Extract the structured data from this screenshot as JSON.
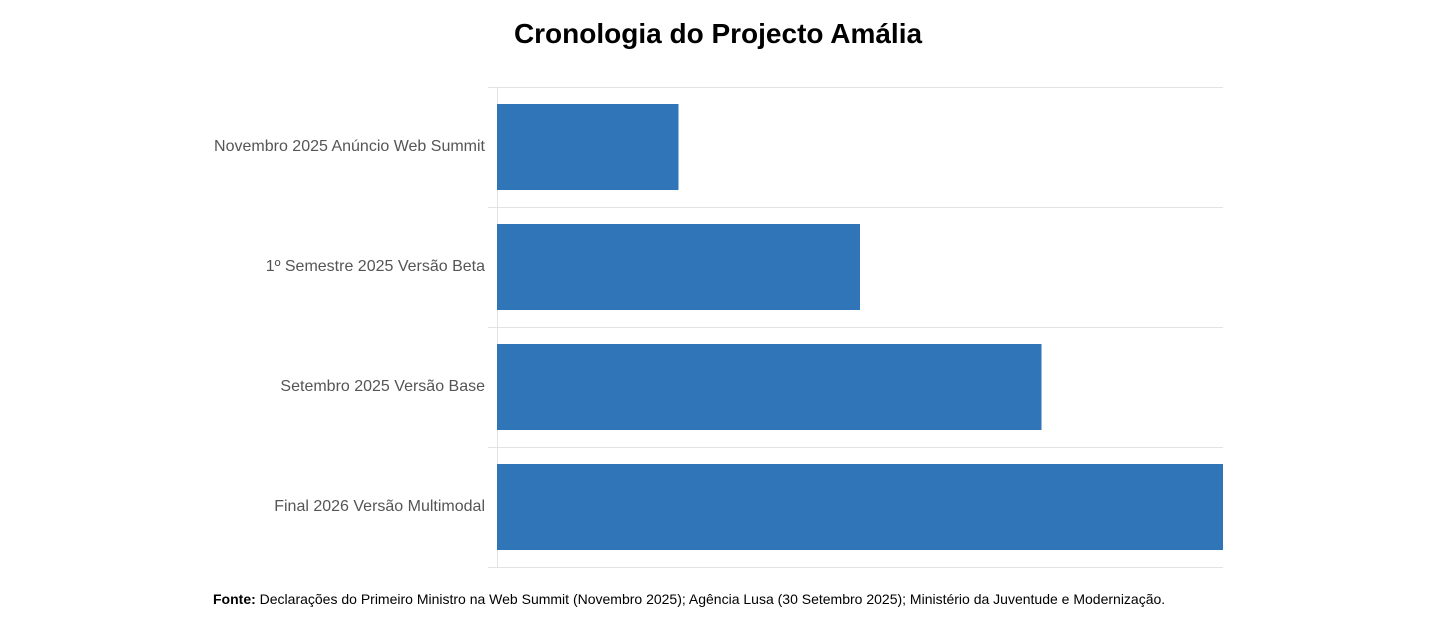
{
  "chart_data": {
    "type": "bar",
    "orientation": "horizontal",
    "title": "Cronologia do Projecto Amália",
    "categories": [
      "Novembro 2025 Anúncio Web Summit",
      "1º Semestre 2025 Versão Beta",
      "Setembro 2025 Versão Base",
      "Final 2026 Versão Multimodal"
    ],
    "values": [
      1,
      2,
      3,
      4
    ],
    "xlim": [
      0,
      4
    ],
    "xlabel": "",
    "ylabel": "",
    "x_tick_labels_shown": false,
    "grid": "horizontal separators",
    "legend": "none",
    "bar_color": "#2f75b8"
  },
  "source": {
    "label": "Fonte:",
    "text": "Declarações do Primeiro Ministro na Web Summit (Novembro 2025); Agência Lusa (30 Setembro 2025); Ministério da Juventude e Modernização."
  }
}
